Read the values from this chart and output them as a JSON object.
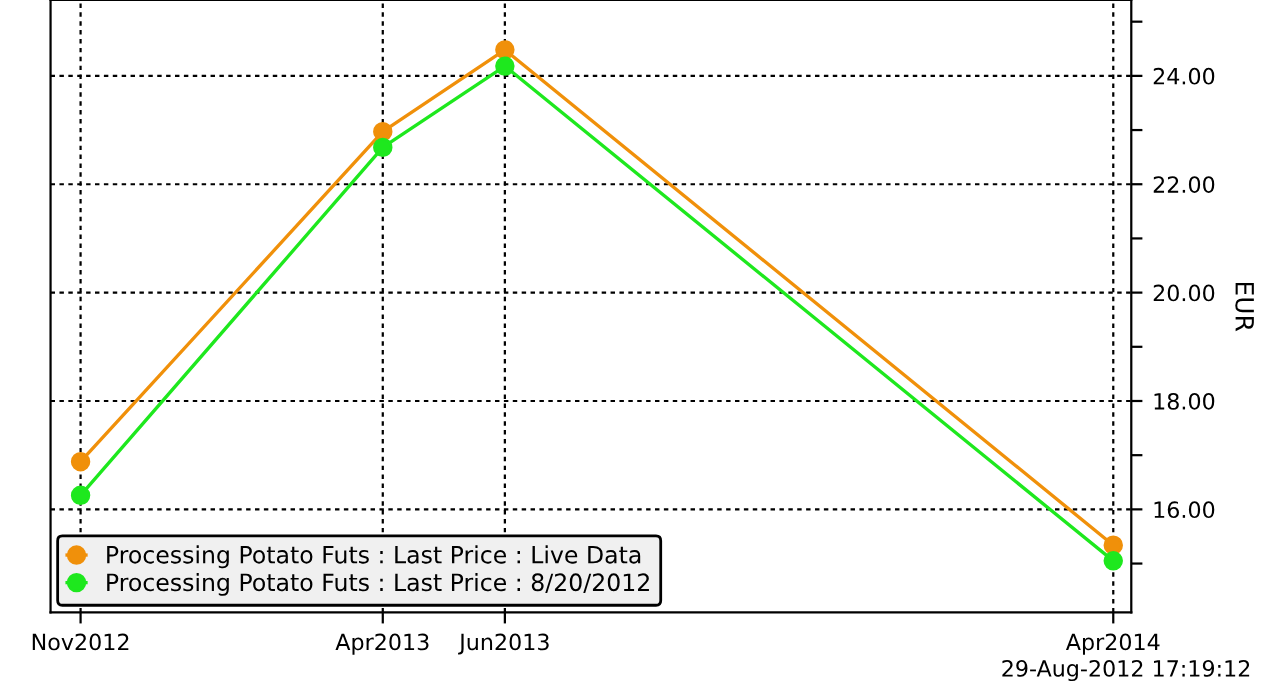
{
  "chart_data": {
    "type": "line",
    "ylabel": "EUR",
    "x": [
      "2012-11",
      "2013-04",
      "2013-06",
      "2014-04"
    ],
    "series": [
      {
        "name": "Processing Potato Futs : Last Price : Live Data",
        "color": "#f0900a",
        "values": [
          16.88,
          22.97,
          24.48,
          15.34
        ]
      },
      {
        "name": "Processing Potato Futs : Last Price : 8/20/2012",
        "color": "#1ee81e",
        "values": [
          16.26,
          22.68,
          24.18,
          15.05
        ]
      }
    ],
    "xlim": [
      "2012-10-17",
      "2014-04-10"
    ],
    "xticks": [
      {
        "value": "2012-11",
        "label": "Nov2012"
      },
      {
        "value": "2013-04",
        "label": "Apr2013"
      },
      {
        "value": "2013-06",
        "label": "Jun2013"
      },
      {
        "value": "2014-04",
        "label": "Apr2014"
      }
    ],
    "ylim": [
      14.1,
      25.4
    ],
    "yticks": [
      {
        "value": 15,
        "label": null
      },
      {
        "value": 16,
        "label": "16.00"
      },
      {
        "value": 17,
        "label": null
      },
      {
        "value": 18,
        "label": "18.00"
      },
      {
        "value": 19,
        "label": null
      },
      {
        "value": 20,
        "label": "20.00"
      },
      {
        "value": 21,
        "label": null
      },
      {
        "value": 22,
        "label": "22.00"
      },
      {
        "value": 23,
        "label": null
      },
      {
        "value": 24,
        "label": "24.00"
      },
      {
        "value": 25,
        "label": null
      }
    ],
    "grid": true,
    "legend": "bottom left",
    "marker": "circle",
    "line_style": "solid",
    "annotations": [
      "29-Aug-2012 17:19:12"
    ]
  }
}
